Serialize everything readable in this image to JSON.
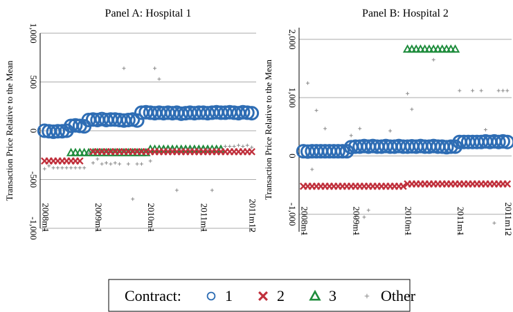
{
  "chart_data": [
    {
      "type": "scatter",
      "title": "Panel A: Hospital 1",
      "y_label": "Transaction Price Relative to the Mean",
      "x": [
        0,
        1,
        2,
        3,
        4,
        5,
        6,
        7,
        8,
        9,
        10,
        11,
        12,
        13,
        14,
        15,
        16,
        17,
        18,
        19,
        20,
        21,
        22,
        23,
        24,
        25,
        26,
        27,
        28,
        29,
        30,
        31,
        32,
        33,
        34,
        35,
        36,
        37,
        38,
        39,
        40,
        41,
        42,
        43,
        44,
        45,
        46,
        47
      ],
      "xlim": [
        -1,
        48
      ],
      "xticks": [
        {
          "value": 0,
          "label": "2008m1"
        },
        {
          "value": 12,
          "label": "2009m1"
        },
        {
          "value": 24,
          "label": "2010m1"
        },
        {
          "value": 36,
          "label": "2011m1"
        },
        {
          "value": 47,
          "label": "2011m12"
        }
      ],
      "ylim": [
        -1000,
        1000
      ],
      "yticks": [
        {
          "value": -1000,
          "label": "-1,000"
        },
        {
          "value": -500,
          "label": "-500"
        },
        0,
        500,
        {
          "value": 1000,
          "label": "1,000"
        }
      ],
      "grid": true,
      "series": [
        {
          "name": "1",
          "color": "#2e6db4",
          "marker": "circle",
          "values": [
            0,
            -5,
            -10,
            -5,
            -5,
            0,
            50,
            55,
            50,
            45,
            110,
            115,
            110,
            120,
            110,
            115,
            115,
            110,
            105,
            110,
            115,
            105,
            185,
            190,
            185,
            180,
            185,
            180,
            185,
            180,
            185,
            175,
            180,
            185,
            180,
            185,
            185,
            180,
            185,
            190,
            185,
            185,
            190,
            185,
            180,
            190,
            185,
            180
          ]
        },
        {
          "name": "2",
          "color": "#c0303c",
          "marker": "x",
          "values": [
            -310,
            -310,
            -310,
            -310,
            -310,
            -310,
            -310,
            -310,
            -310,
            null,
            null,
            -215,
            -215,
            -215,
            -215,
            -215,
            -215,
            -215,
            -215,
            -215,
            -215,
            -215,
            -215,
            -215,
            -215,
            -215,
            -215,
            -215,
            -215,
            -215,
            -215,
            -215,
            -215,
            -215,
            -215,
            -215,
            -215,
            -215,
            -215,
            -215,
            -215,
            -215,
            -215,
            -215,
            -215,
            -215,
            -215,
            -215
          ]
        },
        {
          "name": "3",
          "color": "#1e8c3c",
          "marker": "triangle",
          "values": [
            null,
            null,
            null,
            null,
            null,
            null,
            -225,
            -225,
            -225,
            -225,
            -225,
            -225,
            -225,
            -225,
            -225,
            -225,
            -225,
            -225,
            -225,
            -225,
            -225,
            -225,
            -225,
            -225,
            -190,
            -190,
            -190,
            -190,
            -190,
            -190,
            -190,
            -190,
            -190,
            -190,
            -190,
            -190,
            -190,
            -190,
            -190,
            -190,
            -190,
            null,
            null,
            null,
            null,
            null,
            null,
            null
          ]
        },
        {
          "name": "Other",
          "color": "#888888",
          "marker": "plus",
          "values": [
            -390,
            -360,
            -380,
            -380,
            -380,
            -380,
            -380,
            -380,
            -380,
            -380,
            -230,
            -330,
            -290,
            -340,
            -330,
            -340,
            -330,
            -340,
            640,
            -340,
            -700,
            -340,
            -340,
            -200,
            -310,
            640,
            530,
            -170,
            -170,
            -180,
            -610,
            -180,
            -170,
            -180,
            -170,
            -180,
            -170,
            -180,
            -610,
            -170,
            -170,
            -160,
            -160,
            -160,
            -150,
            -160,
            -150,
            -170
          ]
        }
      ]
    },
    {
      "type": "scatter",
      "title": "Panel B: Hospital 2",
      "y_label": "Transaction Price Relative to the Mean",
      "x": [
        0,
        1,
        2,
        3,
        4,
        5,
        6,
        7,
        8,
        9,
        10,
        11,
        12,
        13,
        14,
        15,
        16,
        17,
        18,
        19,
        20,
        21,
        22,
        23,
        24,
        25,
        26,
        27,
        28,
        29,
        30,
        31,
        32,
        33,
        34,
        35,
        36,
        37,
        38,
        39,
        40,
        41,
        42,
        43,
        44,
        45,
        46,
        47
      ],
      "xlim": [
        -1,
        48
      ],
      "xticks": [
        {
          "value": 0,
          "label": "2008m1"
        },
        {
          "value": 12,
          "label": "2009m1"
        },
        {
          "value": 24,
          "label": "2010m1"
        },
        {
          "value": 36,
          "label": "2011m1"
        },
        {
          "value": 47,
          "label": "2011m12"
        }
      ],
      "ylim": [
        -1300,
        2200
      ],
      "yticks": [
        {
          "value": -1000,
          "label": "-1,000"
        },
        0,
        {
          "value": 1000,
          "label": "1,000"
        },
        {
          "value": 2000,
          "label": "2,000"
        }
      ],
      "grid": true,
      "series": [
        {
          "name": "1",
          "color": "#2e6db4",
          "marker": "circle",
          "values": [
            80,
            75,
            80,
            80,
            80,
            80,
            80,
            80,
            80,
            80,
            80,
            150,
            160,
            160,
            170,
            160,
            170,
            160,
            160,
            170,
            160,
            160,
            170,
            160,
            160,
            165,
            160,
            170,
            160,
            160,
            170,
            160,
            160,
            150,
            160,
            160,
            240,
            240,
            240,
            240,
            240,
            240,
            250,
            240,
            250,
            240,
            250,
            240
          ]
        },
        {
          "name": "2",
          "color": "#c0303c",
          "marker": "x",
          "values": [
            -520,
            -520,
            -520,
            -520,
            -520,
            -520,
            -520,
            -520,
            -520,
            -520,
            -520,
            -520,
            -520,
            -520,
            -520,
            -520,
            -520,
            -520,
            -520,
            -520,
            -520,
            -520,
            -520,
            -520,
            -480,
            -480,
            -480,
            -480,
            -480,
            -480,
            -480,
            -480,
            -480,
            -480,
            -480,
            -480,
            -480,
            -480,
            -480,
            -480,
            -480,
            -480,
            -480,
            -480,
            -480,
            -480,
            -480,
            -480
          ]
        },
        {
          "name": "3",
          "color": "#1e8c3c",
          "marker": "triangle",
          "values": [
            null,
            null,
            null,
            null,
            null,
            null,
            null,
            null,
            null,
            null,
            null,
            null,
            null,
            null,
            null,
            null,
            null,
            null,
            null,
            null,
            null,
            null,
            null,
            null,
            1830,
            1830,
            1830,
            1830,
            1830,
            1830,
            1830,
            1830,
            1830,
            1830,
            1830,
            1830,
            null,
            null,
            null,
            null,
            null,
            null,
            null,
            null,
            null,
            null,
            null,
            null
          ]
        },
        {
          "name": "Other",
          "color": "#888888",
          "marker": "plus",
          "values": [
            null,
            1250,
            -230,
            780,
            null,
            470,
            null,
            null,
            null,
            null,
            null,
            350,
            -1070,
            470,
            -1050,
            -930,
            null,
            null,
            null,
            null,
            430,
            null,
            null,
            null,
            1070,
            800,
            null,
            null,
            null,
            null,
            1650,
            null,
            null,
            null,
            null,
            null,
            1120,
            null,
            null,
            1120,
            null,
            1120,
            450,
            null,
            -1150,
            1120,
            1120,
            1120
          ]
        }
      ]
    }
  ],
  "legend_title": "Contract:"
}
